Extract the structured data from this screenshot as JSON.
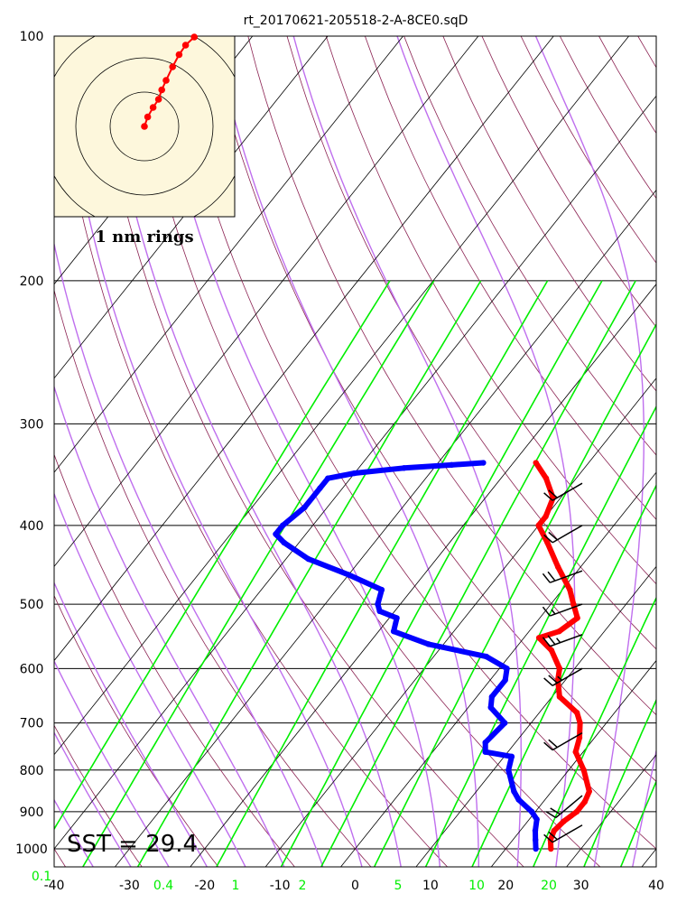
{
  "chart_data": {
    "type": "skew-t",
    "title": "rt_20170621-205518-2-A-8CE0.sqD",
    "sst_label": "SST = 29.4",
    "hodograph_label": "1 nm rings",
    "x_ticks": [
      -40,
      -30,
      -20,
      -10,
      0,
      10,
      20,
      30,
      40
    ],
    "x_tick_labels": [
      "-40",
      "-30",
      "-20",
      "-10",
      "0",
      "10",
      "20",
      "30",
      "40"
    ],
    "pressure_levels": [
      100,
      200,
      300,
      400,
      500,
      600,
      700,
      800,
      900,
      1000
    ],
    "pressure_labels": [
      "100",
      "200",
      "300",
      "400",
      "500",
      "600",
      "700",
      "800",
      "900",
      "1000"
    ],
    "mixing_ratio_labels": [
      "0.1",
      "0.4",
      "1",
      "2",
      "5",
      "10",
      "20"
    ],
    "xlim": [
      -40,
      40
    ],
    "ylim": [
      1050,
      100
    ],
    "colors": {
      "temperature": "#ff0000",
      "dewpoint": "#0000ff",
      "mixing_ratio": "#00ee00",
      "moist_adiabat": "#bf6fee",
      "dry_adiabat": "#8b2252",
      "isotherm": "#000000",
      "hodograph_bg": "#fdf7dc"
    },
    "temperature": [
      {
        "p": 1000,
        "t": 26
      },
      {
        "p": 975,
        "t": 25
      },
      {
        "p": 950,
        "t": 24.5
      },
      {
        "p": 925,
        "t": 24.8
      },
      {
        "p": 900,
        "t": 25.5
      },
      {
        "p": 875,
        "t": 25.5
      },
      {
        "p": 850,
        "t": 25
      },
      {
        "p": 800,
        "t": 22
      },
      {
        "p": 760,
        "t": 19
      },
      {
        "p": 730,
        "t": 18
      },
      {
        "p": 700,
        "t": 16.5
      },
      {
        "p": 680,
        "t": 15
      },
      {
        "p": 650,
        "t": 11
      },
      {
        "p": 620,
        "t": 9
      },
      {
        "p": 600,
        "t": 8
      },
      {
        "p": 570,
        "t": 5
      },
      {
        "p": 550,
        "t": 2
      },
      {
        "p": 540,
        "t": 4
      },
      {
        "p": 520,
        "t": 5
      },
      {
        "p": 500,
        "t": 3
      },
      {
        "p": 480,
        "t": 1
      },
      {
        "p": 450,
        "t": -3
      },
      {
        "p": 420,
        "t": -7
      },
      {
        "p": 400,
        "t": -10
      },
      {
        "p": 390,
        "t": -10
      },
      {
        "p": 370,
        "t": -11
      },
      {
        "p": 350,
        "t": -14
      },
      {
        "p": 335,
        "t": -17
      }
    ],
    "dewpoint": [
      {
        "p": 1000,
        "t": 24
      },
      {
        "p": 975,
        "t": 23
      },
      {
        "p": 950,
        "t": 22
      },
      {
        "p": 920,
        "t": 21
      },
      {
        "p": 900,
        "t": 19.5
      },
      {
        "p": 870,
        "t": 16.5
      },
      {
        "p": 850,
        "t": 15
      },
      {
        "p": 800,
        "t": 12
      },
      {
        "p": 770,
        "t": 11
      },
      {
        "p": 760,
        "t": 7
      },
      {
        "p": 740,
        "t": 6
      },
      {
        "p": 700,
        "t": 6.5
      },
      {
        "p": 670,
        "t": 3
      },
      {
        "p": 650,
        "t": 2
      },
      {
        "p": 620,
        "t": 2
      },
      {
        "p": 600,
        "t": 1
      },
      {
        "p": 580,
        "t": -3
      },
      {
        "p": 560,
        "t": -12
      },
      {
        "p": 540,
        "t": -18
      },
      {
        "p": 520,
        "t": -19
      },
      {
        "p": 510,
        "t": -22
      },
      {
        "p": 500,
        "t": -23
      },
      {
        "p": 480,
        "t": -24
      },
      {
        "p": 460,
        "t": -30
      },
      {
        "p": 440,
        "t": -37
      },
      {
        "p": 420,
        "t": -42
      },
      {
        "p": 410,
        "t": -44
      },
      {
        "p": 400,
        "t": -44
      },
      {
        "p": 380,
        "t": -43
      },
      {
        "p": 360,
        "t": -43
      },
      {
        "p": 350,
        "t": -43
      },
      {
        "p": 345,
        "t": -40
      },
      {
        "p": 340,
        "t": -34
      },
      {
        "p": 337,
        "t": -28
      },
      {
        "p": 335,
        "t": -24
      }
    ],
    "wind_barbs": [
      {
        "p": 935,
        "dir": 240,
        "spd": 20
      },
      {
        "p": 860,
        "dir": 230,
        "spd": 20
      },
      {
        "p": 720,
        "dir": 240,
        "spd": 20
      },
      {
        "p": 600,
        "dir": 240,
        "spd": 25
      },
      {
        "p": 545,
        "dir": 250,
        "spd": 25
      },
      {
        "p": 500,
        "dir": 250,
        "spd": 15
      },
      {
        "p": 455,
        "dir": 250,
        "spd": 20
      },
      {
        "p": 400,
        "dir": 240,
        "spd": 20
      },
      {
        "p": 355,
        "dir": 240,
        "spd": 20
      }
    ],
    "hodograph": [
      [
        0,
        0
      ],
      [
        0.3,
        0.7
      ],
      [
        0.8,
        1.4
      ],
      [
        1.3,
        2.0
      ],
      [
        1.6,
        2.7
      ],
      [
        2.0,
        3.4
      ],
      [
        2.6,
        4.4
      ],
      [
        3.2,
        5.3
      ],
      [
        3.8,
        6.0
      ],
      [
        4.6,
        6.6
      ]
    ]
  }
}
